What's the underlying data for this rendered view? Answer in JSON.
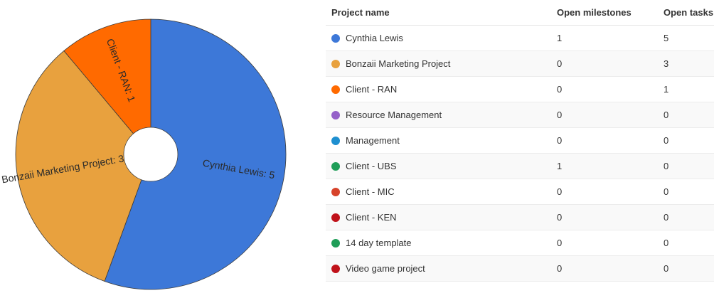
{
  "chart_data": {
    "type": "pie",
    "style": "donut",
    "slices": [
      {
        "label": "Cynthia Lewis",
        "value": 5,
        "display": "Cynthia Lewis: 5",
        "color": "#3d78d8"
      },
      {
        "label": "Bonzaii Marketing Project",
        "value": 3,
        "display": "Bonzaii Marketing Project: 3",
        "color": "#e8a13e"
      },
      {
        "label": "Client - RAN",
        "value": 1,
        "display": "Client - RAN: 1",
        "color": "#ff6a00"
      }
    ],
    "legend": "none"
  },
  "table": {
    "headers": {
      "name": "Project name",
      "milestones": "Open milestones",
      "tasks": "Open tasks"
    },
    "rows": [
      {
        "name": "Cynthia Lewis",
        "color": "#3d78d8",
        "milestones": "1",
        "tasks": "5"
      },
      {
        "name": "Bonzaii Marketing Project",
        "color": "#e8a13e",
        "milestones": "0",
        "tasks": "3"
      },
      {
        "name": "Client - RAN",
        "color": "#ff6a00",
        "milestones": "0",
        "tasks": "1"
      },
      {
        "name": "Resource Management",
        "color": "#9561c9",
        "milestones": "0",
        "tasks": "0"
      },
      {
        "name": "Management",
        "color": "#1e8fd0",
        "milestones": "0",
        "tasks": "0"
      },
      {
        "name": "Client - UBS",
        "color": "#1f9e58",
        "milestones": "1",
        "tasks": "0"
      },
      {
        "name": "Client - MIC",
        "color": "#d7432b",
        "milestones": "0",
        "tasks": "0"
      },
      {
        "name": "Client - KEN",
        "color": "#c0121a",
        "milestones": "0",
        "tasks": "0"
      },
      {
        "name": "14 day template",
        "color": "#1f9e58",
        "milestones": "0",
        "tasks": "0"
      },
      {
        "name": "Video game project",
        "color": "#c0121a",
        "milestones": "0",
        "tasks": "0"
      }
    ]
  }
}
